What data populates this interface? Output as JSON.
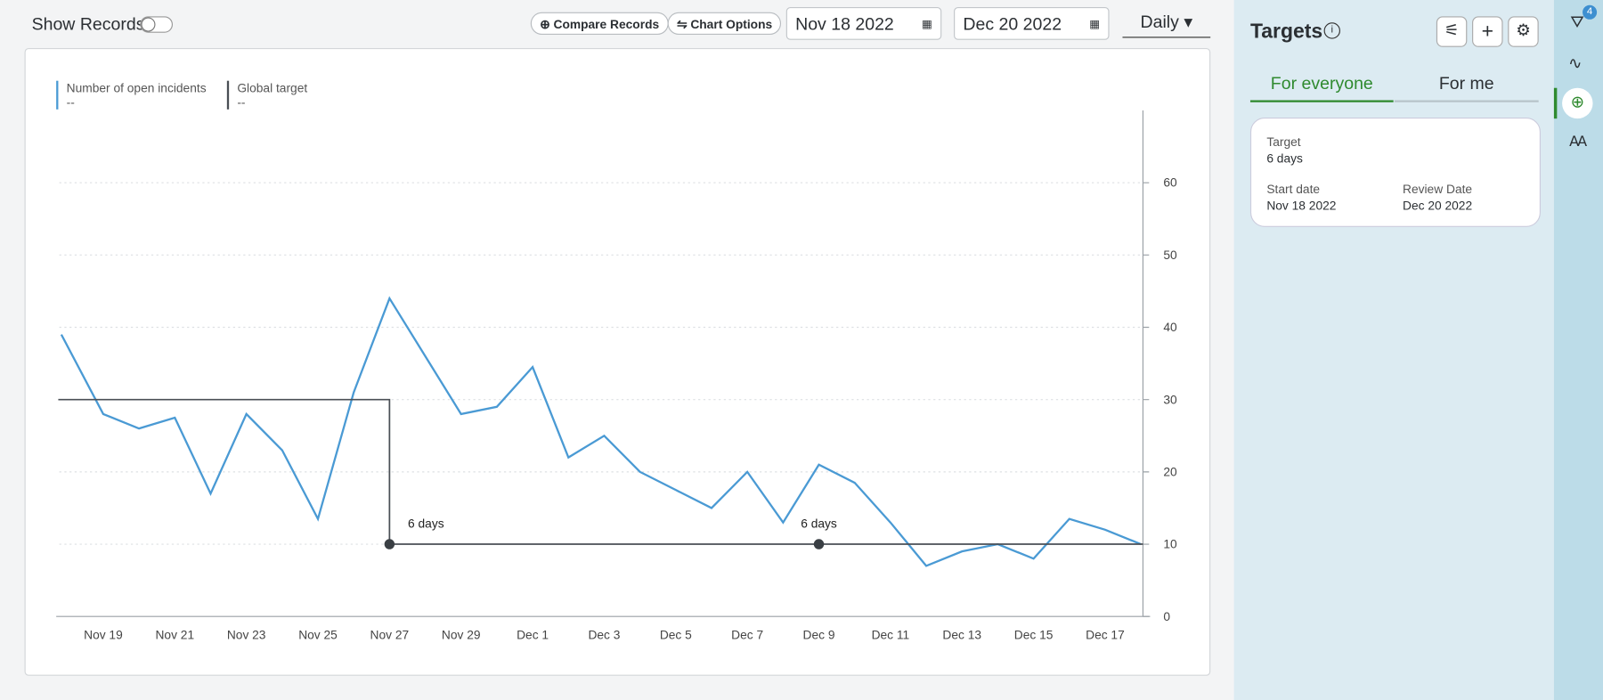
{
  "toolbar": {
    "show_records": "Show Records",
    "compare": "Compare Records",
    "chart_options": "Chart Options",
    "start_date": "Nov 18 2022",
    "end_date": "Dec 20 2022",
    "interval": "Daily"
  },
  "chart_data": {
    "type": "line",
    "categories": [
      null,
      "Nov 19",
      null,
      "Nov 21",
      null,
      "Nov 23",
      null,
      "Nov 25",
      null,
      "Nov 27",
      null,
      "Nov 29",
      null,
      "Dec 1",
      null,
      "Dec 3",
      null,
      "Dec 5",
      null,
      "Dec 7",
      null,
      "Dec 9",
      null,
      "Dec 11",
      null,
      "Dec 13",
      null,
      "Dec 15",
      null,
      "Dec 17",
      null
    ],
    "series": [
      {
        "name": "Number of open incidents",
        "summary": "--",
        "color": "#4a9ad4",
        "values": [
          39,
          28,
          26,
          27.5,
          17,
          28,
          23,
          13.5,
          31,
          44,
          36,
          28,
          29,
          34.5,
          22,
          25,
          20,
          17.5,
          15,
          20,
          13,
          21,
          18.5,
          13,
          7,
          9,
          10,
          8,
          13.5,
          12,
          10
        ]
      },
      {
        "name": "Global target",
        "summary": "--",
        "color": "#4a4f55",
        "step": true,
        "values": [
          30,
          30,
          30,
          30,
          30,
          30,
          30,
          30,
          30,
          10,
          10,
          10,
          10,
          10,
          10,
          10,
          10,
          10,
          10,
          10,
          10,
          10,
          10,
          10,
          10,
          10,
          10,
          10,
          10,
          10,
          10
        ]
      }
    ],
    "annotations": [
      {
        "x": "Nov 27",
        "label": "6 days"
      },
      {
        "x": "Dec 9",
        "label": "6 days"
      }
    ],
    "ylim": [
      0,
      70
    ],
    "yticks": [
      0,
      10,
      20,
      30,
      40,
      50,
      60
    ],
    "grid": true,
    "y_axis_side": "right"
  },
  "targets": {
    "title": "Targets",
    "tabs": [
      "For everyone",
      "For me"
    ],
    "card": {
      "target_label": "Target",
      "target_value": "6 days",
      "start_label": "Start date",
      "start_value": "Nov 18 2022",
      "review_label": "Review Date",
      "review_value": "Dec 20 2022"
    }
  },
  "filter_badge": "4"
}
